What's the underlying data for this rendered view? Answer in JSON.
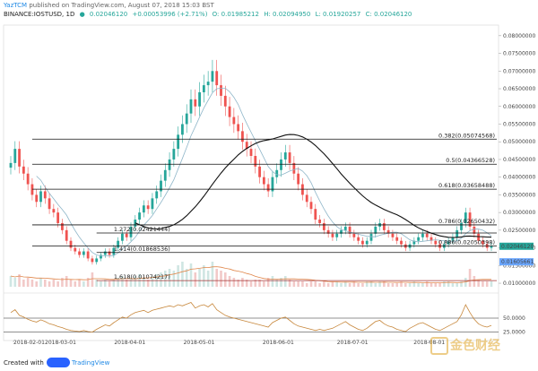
{
  "header": {
    "author": "YazTCM",
    "published": "published on TradingView.com, August 07, 2018 15:03 BST",
    "symbol": "BINANCE:IOSTUSD, 1D",
    "price": "0.02046120",
    "change": "+0.00053996 (+2.71%)",
    "open": "O: 0.01985212",
    "high": "H: 0.02094950",
    "low": "L: 0.01920257",
    "close": "C: 0.02046120"
  },
  "footer": {
    "created_with": "Created with",
    "brand": "TradingView"
  },
  "watermark": {
    "text": "金色财经"
  },
  "colors": {
    "up": "#26a69a",
    "down": "#ef5350",
    "ma_fast": "#8fb6c9",
    "ma_slow": "#111111",
    "rsi": "#c7873b",
    "fib": "#111111",
    "fib_low": "#a33333",
    "price_tag": "#26a69a",
    "volume_ma": "#e0864a"
  },
  "chart_data": {
    "type": "candlestick",
    "symbol": "IOSTUSD",
    "timeframe": "1D",
    "x_ticks": [
      "2018-02-01",
      "2018-03-01",
      "2018-04-01",
      "2018-05-01",
      "2018-06-01",
      "2018-07-01",
      "2018-08-01"
    ],
    "y_ticks": [
      "0.08000000",
      "0.07500000",
      "0.07000000",
      "0.06500000",
      "0.06000000",
      "0.05500000",
      "0.05000000",
      "0.04500000",
      "0.04000000",
      "0.03500000",
      "0.03000000",
      "0.02500000",
      "0.02000000",
      "0.01500000",
      "0.01000000"
    ],
    "ylim": [
      0.009,
      0.083
    ],
    "price_tags": [
      {
        "label": "0.02046120",
        "value": 0.0204612,
        "color": "#26a69a"
      },
      {
        "label": "0.01605661",
        "value": 0.01605661,
        "color": "#6aa6ff"
      }
    ],
    "fib_levels": [
      {
        "label": "0.382(0.05074568)",
        "value": 0.05074568
      },
      {
        "label": "0.5(0.04366528)",
        "value": 0.04366528
      },
      {
        "label": "0.618(0.03658488)",
        "value": 0.03658488
      },
      {
        "label": "0.786(0.02650432)",
        "value": 0.02650432
      },
      {
        "label": "0.886(0.02050398)",
        "value": 0.02050398
      },
      {
        "label": "1.272(0.02421444)",
        "value": 0.02421444
      },
      {
        "label": "1.414(0.01868536)",
        "value": 0.01868536
      },
      {
        "label": "1.618(0.01074217)",
        "value": 0.01074217
      }
    ],
    "price_series_close": [
      0.044,
      0.048,
      0.043,
      0.041,
      0.038,
      0.035,
      0.033,
      0.036,
      0.034,
      0.031,
      0.03,
      0.027,
      0.025,
      0.022,
      0.02,
      0.019,
      0.018,
      0.019,
      0.017,
      0.016,
      0.017,
      0.018,
      0.019,
      0.018,
      0.02,
      0.022,
      0.024,
      0.023,
      0.026,
      0.028,
      0.03,
      0.032,
      0.031,
      0.034,
      0.036,
      0.039,
      0.042,
      0.045,
      0.048,
      0.052,
      0.055,
      0.058,
      0.062,
      0.06,
      0.064,
      0.066,
      0.067,
      0.07,
      0.066,
      0.063,
      0.06,
      0.057,
      0.055,
      0.053,
      0.05,
      0.048,
      0.046,
      0.043,
      0.04,
      0.038,
      0.036,
      0.04,
      0.042,
      0.045,
      0.047,
      0.044,
      0.041,
      0.038,
      0.035,
      0.033,
      0.031,
      0.028,
      0.027,
      0.025,
      0.024,
      0.023,
      0.024,
      0.025,
      0.026,
      0.024,
      0.023,
      0.022,
      0.021,
      0.022,
      0.024,
      0.026,
      0.027,
      0.025,
      0.024,
      0.023,
      0.022,
      0.021,
      0.02,
      0.021,
      0.022,
      0.023,
      0.024,
      0.023,
      0.022,
      0.021,
      0.02,
      0.021,
      0.022,
      0.023,
      0.025,
      0.027,
      0.03,
      0.026,
      0.024,
      0.022,
      0.021,
      0.02,
      0.0205
    ],
    "rsi": {
      "levels": [
        {
          "label": "50.0000",
          "value": 50
        },
        {
          "label": "25.0000",
          "value": 25
        }
      ],
      "ylim": [
        10,
        90
      ],
      "values": [
        60,
        65,
        55,
        52,
        48,
        45,
        43,
        47,
        44,
        40,
        38,
        35,
        33,
        30,
        28,
        27,
        26,
        28,
        26,
        25,
        30,
        34,
        38,
        36,
        42,
        47,
        52,
        50,
        56,
        60,
        62,
        64,
        60,
        64,
        66,
        68,
        70,
        72,
        70,
        74,
        72,
        75,
        78,
        68,
        72,
        74,
        70,
        76,
        65,
        60,
        55,
        52,
        50,
        48,
        46,
        44,
        42,
        40,
        38,
        36,
        34,
        42,
        46,
        50,
        52,
        46,
        40,
        36,
        34,
        32,
        30,
        28,
        30,
        28,
        30,
        32,
        36,
        40,
        44,
        38,
        34,
        30,
        28,
        32,
        38,
        44,
        46,
        40,
        36,
        34,
        30,
        28,
        26,
        32,
        36,
        40,
        42,
        38,
        34,
        30,
        28,
        32,
        36,
        40,
        44,
        56,
        74,
        60,
        48,
        40,
        36,
        34,
        37
      ]
    },
    "volume": [
      6,
      5,
      7,
      4,
      5,
      4,
      3,
      5,
      4,
      3,
      4,
      3,
      5,
      6,
      4,
      3,
      4,
      3,
      5,
      8,
      4,
      3,
      4,
      3,
      4,
      5,
      6,
      4,
      5,
      6,
      7,
      5,
      4,
      6,
      7,
      8,
      9,
      10,
      9,
      12,
      14,
      10,
      13,
      8,
      10,
      12,
      9,
      14,
      10,
      9,
      8,
      6,
      5,
      4,
      5,
      4,
      3,
      4,
      4,
      3,
      5,
      6,
      4,
      5,
      6,
      4,
      3,
      3,
      3,
      2,
      3,
      3,
      2,
      3,
      2,
      3,
      3,
      2,
      3,
      2,
      3,
      2,
      2,
      3,
      3,
      2,
      3,
      3,
      2,
      2,
      2,
      3,
      2,
      2,
      3,
      2,
      2,
      3,
      2,
      2,
      2,
      3,
      3,
      2,
      2,
      3,
      5,
      10,
      6,
      4,
      3,
      3,
      3
    ]
  }
}
